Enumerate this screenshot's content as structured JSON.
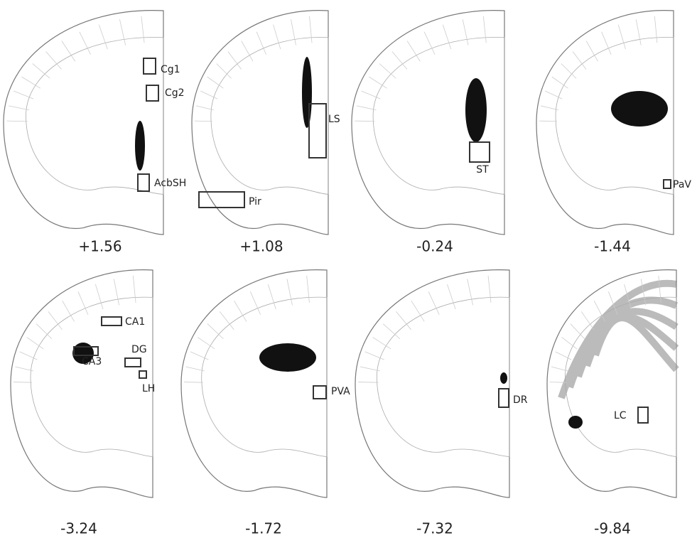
{
  "panels": [
    {
      "coordinate": "+1.56",
      "regions": [
        "Cg1",
        "Cg2",
        "AcbSH"
      ]
    },
    {
      "coordinate": "+1.08",
      "regions": [
        "LS",
        "Pir"
      ]
    },
    {
      "coordinate": "-0.24",
      "regions": [
        "ST"
      ]
    },
    {
      "coordinate": "-1.44",
      "regions": [
        "PaV"
      ]
    },
    {
      "coordinate": "-3.24",
      "regions": [
        "CA1",
        "CA3",
        "DG",
        "LH"
      ]
    },
    {
      "coordinate": "-1.72",
      "regions": [
        "PVA"
      ]
    },
    {
      "coordinate": "-7.32",
      "regions": [
        "DR"
      ]
    },
    {
      "coordinate": "-9.84",
      "regions": [
        "LC"
      ]
    }
  ]
}
